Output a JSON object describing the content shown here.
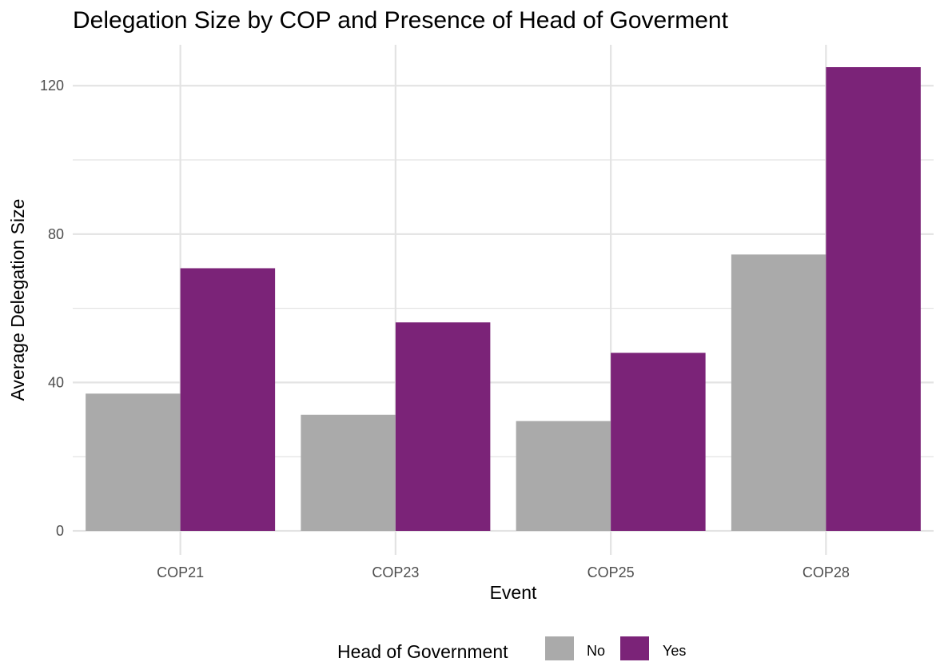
{
  "chart_data": {
    "type": "bar",
    "title": "Delegation Size by COP and Presence of Head of Goverment",
    "xlabel": "Event",
    "ylabel": "Average Delegation Size",
    "categories": [
      "COP21",
      "COP23",
      "COP25",
      "COP28"
    ],
    "series": [
      {
        "name": "No",
        "color": "#aaaaaa",
        "values": [
          37.0,
          31.3,
          29.6,
          74.5
        ]
      },
      {
        "name": "Yes",
        "color": "#7b2378",
        "values": [
          70.8,
          56.2,
          48.0,
          125.0
        ]
      }
    ],
    "ylim": [
      0,
      130
    ],
    "yticks": [
      0,
      40,
      80,
      120
    ],
    "grid": true,
    "legend": {
      "title": "Head of Government",
      "position": "bottom",
      "labels": [
        "No",
        "Yes"
      ]
    }
  }
}
